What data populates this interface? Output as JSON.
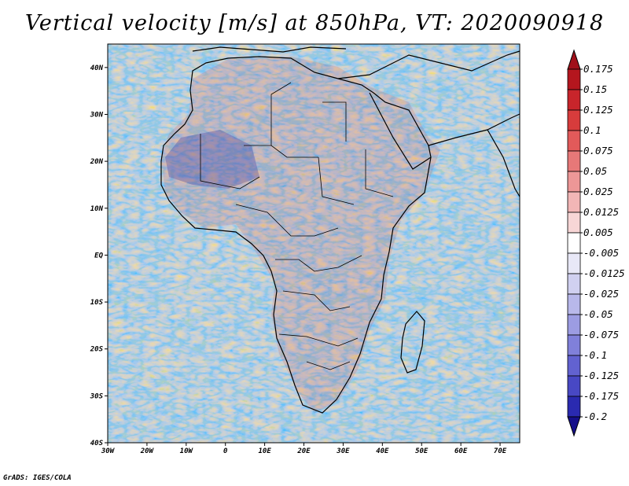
{
  "title": "Vertical velocity [m/s] at 850hPa, VT: 2020090918",
  "footer": "GrADS: IGES/COLA",
  "map": {
    "lat_labels": [
      "40N",
      "30N",
      "20N",
      "10N",
      "EQ",
      "10S",
      "20S",
      "30S",
      "40S"
    ],
    "lat_values": [
      40,
      30,
      20,
      10,
      0,
      -10,
      -20,
      -30,
      -40
    ],
    "lon_labels": [
      "30W",
      "20W",
      "10W",
      "0",
      "10E",
      "20E",
      "30E",
      "40E",
      "50E",
      "60E",
      "70E"
    ],
    "lon_values": [
      -30,
      -20,
      -10,
      0,
      10,
      20,
      30,
      40,
      50,
      60,
      70
    ],
    "lon_range": [
      -30,
      75
    ],
    "lat_range": [
      -40,
      45
    ]
  },
  "colorbar": {
    "labels": [
      "0.175",
      "0.15",
      "0.125",
      "0.1",
      "0.075",
      "0.05",
      "0.025",
      "0.0125",
      "0.005",
      "-0.005",
      "-0.0125",
      "-0.025",
      "-0.05",
      "-0.075",
      "-0.1",
      "-0.125",
      "-0.175",
      "-0.2"
    ],
    "colors": [
      "#b4161e",
      "#c8252b",
      "#d73c3c",
      "#e25a5a",
      "#e77878",
      "#ed9797",
      "#f2b6b6",
      "#f7d6d6",
      "#ffffff",
      "#e8e8f7",
      "#d0d0f0",
      "#b8b8ea",
      "#9c9ce2",
      "#8080da",
      "#6262d0",
      "#4848c4",
      "#2a2ab0",
      "#1a1a9a"
    ],
    "top_cap_color": "#a0101a",
    "bottom_cap_color": "#150f8a"
  }
}
